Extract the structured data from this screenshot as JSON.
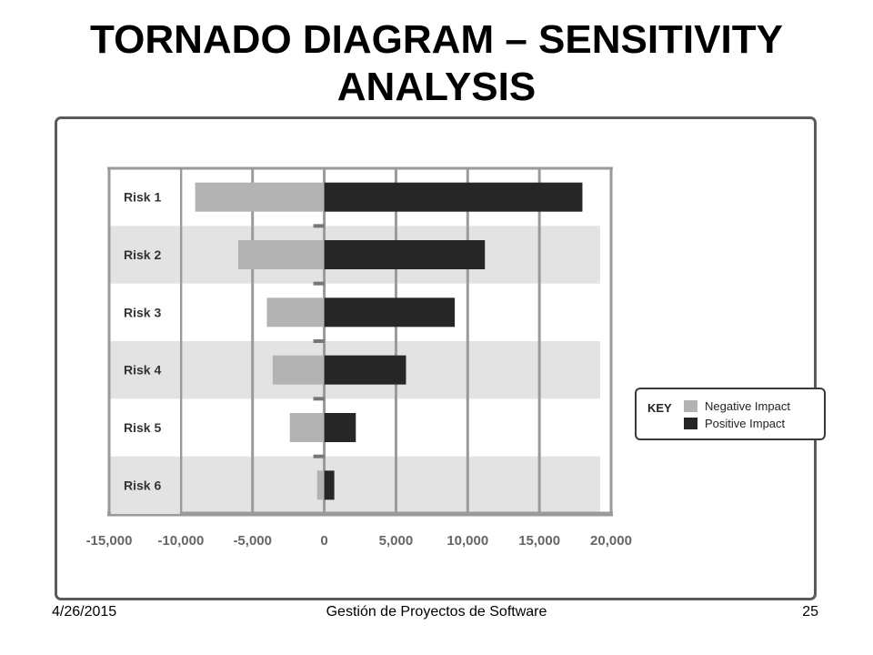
{
  "slide": {
    "title": "TORNADO DIAGRAM – SENSITIVITY ANALYSIS",
    "footer_date": "4/26/2015",
    "footer_center": "Gestión de Proyectos de Software",
    "page_number": "25"
  },
  "legend": {
    "key_label": "KEY",
    "negative_label": "Negative Impact",
    "positive_label": "Positive Impact"
  },
  "chart_data": {
    "type": "bar",
    "orientation": "horizontal",
    "categories": [
      "Risk 1",
      "Risk 2",
      "Risk 3",
      "Risk 4",
      "Risk 5",
      "Risk 6"
    ],
    "series": [
      {
        "name": "Negative Impact",
        "values": [
          -9000,
          -6000,
          -4000,
          -3600,
          -2400,
          -500
        ],
        "color": "#b3b3b3"
      },
      {
        "name": "Positive Impact",
        "values": [
          18000,
          11200,
          9100,
          5700,
          2200,
          700
        ],
        "color": "#262626"
      }
    ],
    "xlim": [
      -15000,
      20000
    ],
    "x_ticks": [
      -15000,
      -10000,
      -5000,
      0,
      5000,
      10000,
      15000,
      20000
    ],
    "x_tick_labels": [
      "-15,000",
      "-10,000",
      "-5,000",
      "0",
      "5,000",
      "10,000",
      "15,000",
      "20,000"
    ],
    "grid": true,
    "legend_position": "right"
  }
}
